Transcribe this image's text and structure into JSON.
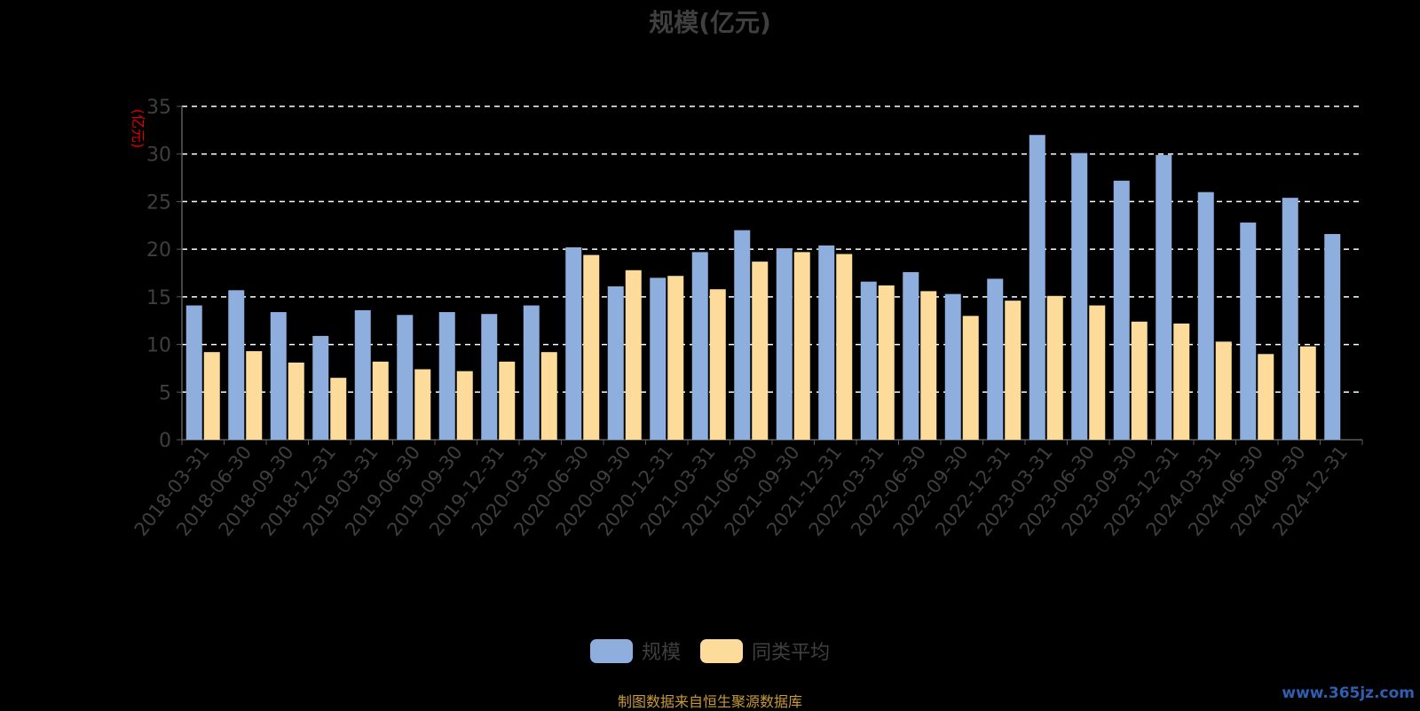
{
  "chart_data": {
    "type": "bar",
    "title": "规模(亿元)",
    "ylabel": "(亿元)",
    "ylim": [
      0,
      35
    ],
    "yticks": [
      0,
      5,
      10,
      15,
      20,
      25,
      30,
      35
    ],
    "grid": true,
    "legend_position": "bottom-center",
    "categories": [
      "2018-03-31",
      "2018-06-30",
      "2018-09-30",
      "2018-12-31",
      "2019-03-31",
      "2019-06-30",
      "2019-09-30",
      "2019-12-31",
      "2020-03-31",
      "2020-06-30",
      "2020-09-30",
      "2020-12-31",
      "2021-03-31",
      "2021-06-30",
      "2021-09-30",
      "2021-12-31",
      "2022-03-31",
      "2022-06-30",
      "2022-09-30",
      "2022-12-31",
      "2023-03-31",
      "2023-06-30",
      "2023-09-30",
      "2023-12-31",
      "2024-03-31",
      "2024-06-30",
      "2024-09-30",
      "2024-12-31"
    ],
    "series": [
      {
        "name": "规模",
        "color": "#8eaedd",
        "values": [
          14.1,
          15.7,
          13.4,
          10.9,
          13.6,
          13.1,
          13.4,
          13.2,
          14.1,
          20.2,
          16.1,
          17.0,
          19.7,
          22.0,
          20.1,
          20.4,
          16.6,
          17.6,
          15.3,
          16.9,
          32.0,
          30.1,
          27.2,
          29.9,
          26.0,
          22.8,
          25.4,
          21.6
        ]
      },
      {
        "name": "同类平均",
        "color": "#fcdb9b",
        "values": [
          9.2,
          9.3,
          8.1,
          6.5,
          8.2,
          7.4,
          7.2,
          8.2,
          9.2,
          19.4,
          17.8,
          17.2,
          15.8,
          18.7,
          19.7,
          19.5,
          16.2,
          15.6,
          13.0,
          14.6,
          15.1,
          14.1,
          12.4,
          12.2,
          10.3,
          9.0,
          9.8,
          null
        ]
      }
    ]
  },
  "colors": {
    "background": "#000000",
    "grid": "#ffffff",
    "axis": "#5a5a5a",
    "text": "#3f3f3f",
    "ylabel": "#e00000"
  },
  "legend": {
    "items": [
      "规模",
      "同类平均"
    ]
  },
  "footer": {
    "source": "制图数据来自恒生聚源数据库",
    "watermark": "www.365jz.com"
  }
}
